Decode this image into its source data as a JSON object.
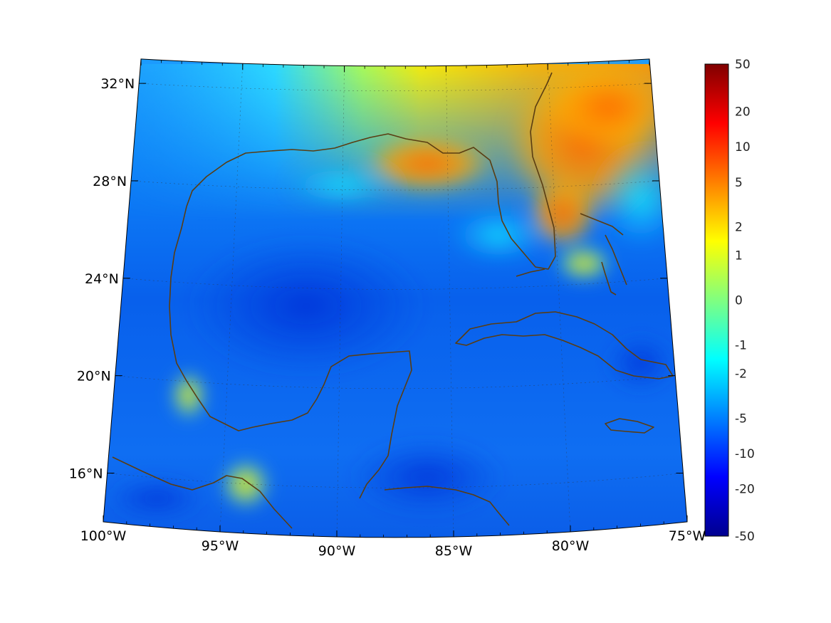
{
  "map": {
    "projection": "lambert-conic",
    "lon_range": [
      -100,
      -75
    ],
    "lat_range": [
      14,
      33
    ],
    "grid_lines": "dotted",
    "coastline_color": "#5a3d12",
    "colormap": "jet",
    "lon_ticks": [
      {
        "value": -100,
        "label": "100°W"
      },
      {
        "value": -95,
        "label": "95°W"
      },
      {
        "value": -90,
        "label": "90°W"
      },
      {
        "value": -85,
        "label": "85°W"
      },
      {
        "value": -80,
        "label": "80°W"
      },
      {
        "value": -75,
        "label": "75°W"
      }
    ],
    "lat_ticks": [
      {
        "value": 32,
        "label": "32°N"
      },
      {
        "value": 28,
        "label": "28°N"
      },
      {
        "value": 24,
        "label": "24°N"
      },
      {
        "value": 20,
        "label": "20°N"
      },
      {
        "value": 16,
        "label": "16°N"
      }
    ]
  },
  "colorbar": {
    "placement": "right",
    "range": [
      -50,
      50
    ],
    "labels": [
      "50",
      "20",
      "10",
      "5",
      "2",
      "1",
      "0",
      "-1",
      "-2",
      "-5",
      "-10",
      "-20",
      "-50"
    ]
  }
}
